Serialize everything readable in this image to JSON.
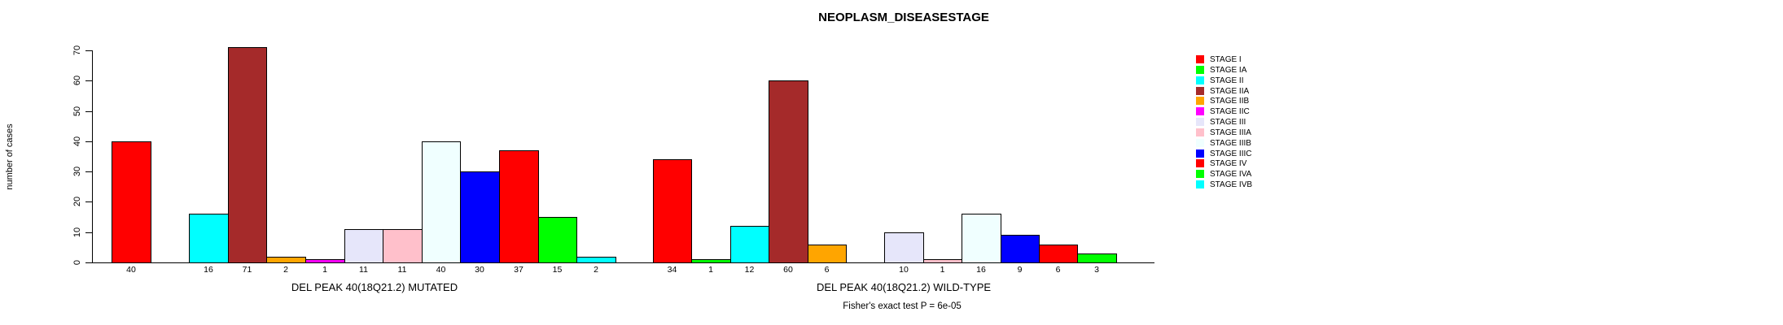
{
  "header": {
    "title": "NEOPLASM_DISEASESTAGE"
  },
  "chart_data": {
    "type": "bar",
    "title": "NEOPLASM_DISEASESTAGE",
    "xlabel": "",
    "ylabel": "number of cases",
    "ylim": [
      0,
      70
    ],
    "y_ticks": [
      0,
      10,
      20,
      30,
      40,
      50,
      60,
      70
    ],
    "grid": false,
    "legend_position": "right",
    "categories": [
      "STAGE I",
      "STAGE IA",
      "STAGE II",
      "STAGE IIA",
      "STAGE IIB",
      "STAGE IIC",
      "STAGE III",
      "STAGE IIIA",
      "STAGE IIIB",
      "STAGE IIIC",
      "STAGE IV",
      "STAGE IVA",
      "STAGE IVB"
    ],
    "colors": [
      "#FF0000",
      "#00FF00",
      "#00FFFF",
      "#A52A2A",
      "#FFA500",
      "#FF00FF",
      "#E6E6FA",
      "#FFC0CB",
      "#F0FFFF",
      "#0000FF",
      "#FF0000",
      "#00FF00",
      "#00FFFF"
    ],
    "series": [
      {
        "name": "DEL PEAK 40(18Q21.2) MUTATED",
        "values": [
          40,
          0,
          16,
          71,
          2,
          1,
          11,
          11,
          40,
          30,
          37,
          15,
          2
        ]
      },
      {
        "name": "DEL PEAK 40(18Q21.2) WILD-TYPE",
        "values": [
          34,
          1,
          12,
          60,
          6,
          0,
          10,
          1,
          16,
          9,
          6,
          3,
          0
        ]
      }
    ],
    "bar_value_labels_shown_for_zero": false,
    "annotation": "Fisher's exact test P = 6e-05"
  }
}
